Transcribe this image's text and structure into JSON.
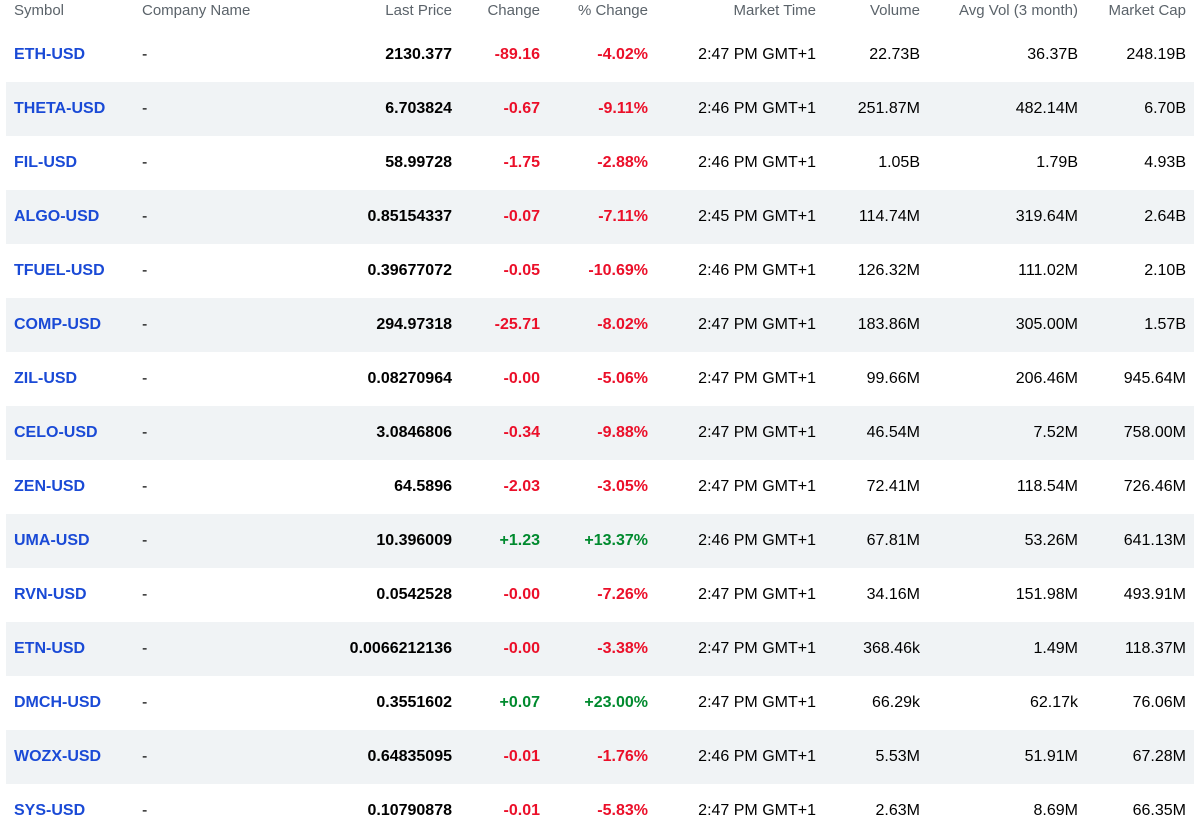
{
  "columns": [
    {
      "key": "symbol",
      "label": "Symbol"
    },
    {
      "key": "company",
      "label": "Company Name"
    },
    {
      "key": "last_price",
      "label": "Last Price"
    },
    {
      "key": "change",
      "label": "Change"
    },
    {
      "key": "pct_change",
      "label": "% Change"
    },
    {
      "key": "market_time",
      "label": "Market Time"
    },
    {
      "key": "volume",
      "label": "Volume"
    },
    {
      "key": "avg_vol",
      "label": "Avg Vol (3 month)"
    },
    {
      "key": "market_cap",
      "label": "Market Cap"
    }
  ],
  "colors": {
    "link": "#1a4ad6",
    "negative": "#eb0f29",
    "positive": "#008a2e",
    "header_text": "#5b636a",
    "row_stripe": "#f0f3f5"
  },
  "rows": [
    {
      "symbol": "ETH-USD",
      "company": "-",
      "last_price": "2130.377",
      "change": "-89.16",
      "pct_change": "-4.02%",
      "market_time": "2:47 PM GMT+1",
      "volume": "22.73B",
      "avg_vol": "36.37B",
      "market_cap": "248.19B",
      "direction": "down"
    },
    {
      "symbol": "THETA-USD",
      "company": "-",
      "last_price": "6.703824",
      "change": "-0.67",
      "pct_change": "-9.11%",
      "market_time": "2:46 PM GMT+1",
      "volume": "251.87M",
      "avg_vol": "482.14M",
      "market_cap": "6.70B",
      "direction": "down"
    },
    {
      "symbol": "FIL-USD",
      "company": "-",
      "last_price": "58.99728",
      "change": "-1.75",
      "pct_change": "-2.88%",
      "market_time": "2:46 PM GMT+1",
      "volume": "1.05B",
      "avg_vol": "1.79B",
      "market_cap": "4.93B",
      "direction": "down"
    },
    {
      "symbol": "ALGO-USD",
      "company": "-",
      "last_price": "0.85154337",
      "change": "-0.07",
      "pct_change": "-7.11%",
      "market_time": "2:45 PM GMT+1",
      "volume": "114.74M",
      "avg_vol": "319.64M",
      "market_cap": "2.64B",
      "direction": "down"
    },
    {
      "symbol": "TFUEL-USD",
      "company": "-",
      "last_price": "0.39677072",
      "change": "-0.05",
      "pct_change": "-10.69%",
      "market_time": "2:46 PM GMT+1",
      "volume": "126.32M",
      "avg_vol": "111.02M",
      "market_cap": "2.10B",
      "direction": "down"
    },
    {
      "symbol": "COMP-USD",
      "company": "-",
      "last_price": "294.97318",
      "change": "-25.71",
      "pct_change": "-8.02%",
      "market_time": "2:47 PM GMT+1",
      "volume": "183.86M",
      "avg_vol": "305.00M",
      "market_cap": "1.57B",
      "direction": "down"
    },
    {
      "symbol": "ZIL-USD",
      "company": "-",
      "last_price": "0.08270964",
      "change": "-0.00",
      "pct_change": "-5.06%",
      "market_time": "2:47 PM GMT+1",
      "volume": "99.66M",
      "avg_vol": "206.46M",
      "market_cap": "945.64M",
      "direction": "down"
    },
    {
      "symbol": "CELO-USD",
      "company": "-",
      "last_price": "3.0846806",
      "change": "-0.34",
      "pct_change": "-9.88%",
      "market_time": "2:47 PM GMT+1",
      "volume": "46.54M",
      "avg_vol": "7.52M",
      "market_cap": "758.00M",
      "direction": "down"
    },
    {
      "symbol": "ZEN-USD",
      "company": "-",
      "last_price": "64.5896",
      "change": "-2.03",
      "pct_change": "-3.05%",
      "market_time": "2:47 PM GMT+1",
      "volume": "72.41M",
      "avg_vol": "118.54M",
      "market_cap": "726.46M",
      "direction": "down"
    },
    {
      "symbol": "UMA-USD",
      "company": "-",
      "last_price": "10.396009",
      "change": "+1.23",
      "pct_change": "+13.37%",
      "market_time": "2:46 PM GMT+1",
      "volume": "67.81M",
      "avg_vol": "53.26M",
      "market_cap": "641.13M",
      "direction": "up"
    },
    {
      "symbol": "RVN-USD",
      "company": "-",
      "last_price": "0.0542528",
      "change": "-0.00",
      "pct_change": "-7.26%",
      "market_time": "2:47 PM GMT+1",
      "volume": "34.16M",
      "avg_vol": "151.98M",
      "market_cap": "493.91M",
      "direction": "down"
    },
    {
      "symbol": "ETN-USD",
      "company": "-",
      "last_price": "0.0066212136",
      "change": "-0.00",
      "pct_change": "-3.38%",
      "market_time": "2:47 PM GMT+1",
      "volume": "368.46k",
      "avg_vol": "1.49M",
      "market_cap": "118.37M",
      "direction": "down"
    },
    {
      "symbol": "DMCH-USD",
      "company": "-",
      "last_price": "0.3551602",
      "change": "+0.07",
      "pct_change": "+23.00%",
      "market_time": "2:47 PM GMT+1",
      "volume": "66.29k",
      "avg_vol": "62.17k",
      "market_cap": "76.06M",
      "direction": "up"
    },
    {
      "symbol": "WOZX-USD",
      "company": "-",
      "last_price": "0.64835095",
      "change": "-0.01",
      "pct_change": "-1.76%",
      "market_time": "2:46 PM GMT+1",
      "volume": "5.53M",
      "avg_vol": "51.91M",
      "market_cap": "67.28M",
      "direction": "down"
    },
    {
      "symbol": "SYS-USD",
      "company": "-",
      "last_price": "0.10790878",
      "change": "-0.01",
      "pct_change": "-5.83%",
      "market_time": "2:47 PM GMT+1",
      "volume": "2.63M",
      "avg_vol": "8.69M",
      "market_cap": "66.35M",
      "direction": "down"
    }
  ]
}
